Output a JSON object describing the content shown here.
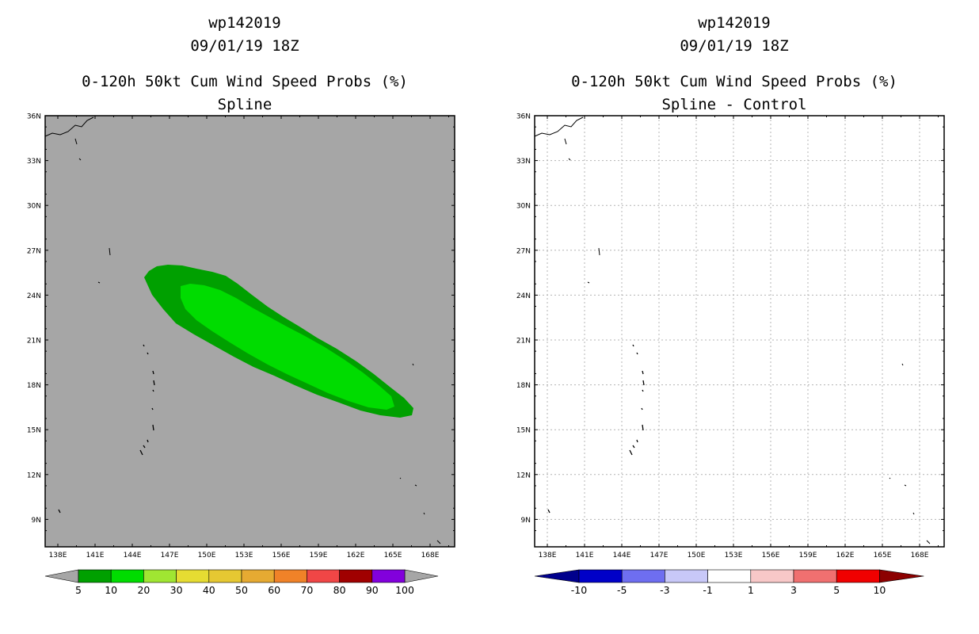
{
  "panels": [
    {
      "storm_id": "wp142019",
      "datetime": "09/01/19 18Z",
      "title": "0-120h 50kt Cum Wind Speed Probs (%)",
      "subtitle": "Spline",
      "background_color": "#a6a6a6",
      "gridlines": false,
      "lat_labels": [
        "36N",
        "33N",
        "30N",
        "27N",
        "24N",
        "21N",
        "18N",
        "15N",
        "12N",
        "9N"
      ],
      "lon_labels": [
        "138E",
        "141E",
        "144E",
        "147E",
        "150E",
        "153E",
        "156E",
        "159E",
        "162E",
        "165E",
        "168E"
      ],
      "colorbar": {
        "labels": [
          "5",
          "10",
          "20",
          "30",
          "40",
          "50",
          "60",
          "70",
          "80",
          "90",
          "100"
        ],
        "colors": [
          "#00a000",
          "#00dc00",
          "#a0e632",
          "#e6dc32",
          "#e6c832",
          "#e6aa32",
          "#f08228",
          "#f04646",
          "#a00000",
          "#8200dc"
        ],
        "end_colors": [
          "#a6a6a6",
          "#a6a6a6"
        ]
      }
    },
    {
      "storm_id": "wp142019",
      "datetime": "09/01/19 18Z",
      "title": "0-120h 50kt Cum Wind Speed Probs (%)",
      "subtitle": "Spline - Control",
      "background_color": "#ffffff",
      "gridlines": true,
      "lat_labels": [
        "36N",
        "33N",
        "30N",
        "27N",
        "24N",
        "21N",
        "18N",
        "15N",
        "12N",
        "9N"
      ],
      "lon_labels": [
        "138E",
        "141E",
        "144E",
        "147E",
        "150E",
        "153E",
        "156E",
        "159E",
        "162E",
        "165E",
        "168E"
      ],
      "colorbar": {
        "labels": [
          "-10",
          "-5",
          "-3",
          "-1",
          "1",
          "3",
          "5",
          "10"
        ],
        "colors": [
          "#0000c8",
          "#6e6ef0",
          "#c8c8f8",
          "#ffffff",
          "#f8c8c8",
          "#f07070",
          "#f00000"
        ],
        "end_colors": [
          "#00008c",
          "#8c0000"
        ]
      }
    }
  ],
  "probability_contours": [
    {
      "level": "5",
      "color": "#00a000"
    },
    {
      "level": "10",
      "color": "#00dc00"
    }
  ]
}
